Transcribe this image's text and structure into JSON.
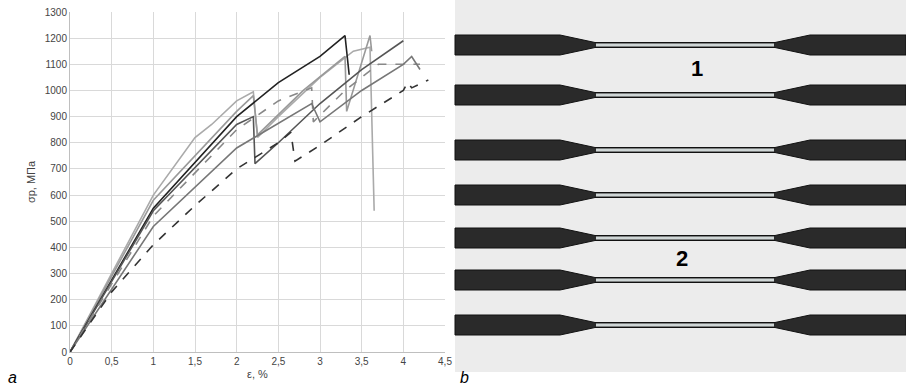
{
  "chart_data": {
    "type": "line",
    "x_label": "ε, %",
    "y_label": "σp, МПа",
    "xlim": [
      0,
      4.5
    ],
    "ylim": [
      0,
      1300
    ],
    "xticks": [
      0,
      {
        "value": 0.5,
        "label": "0,5"
      },
      1,
      {
        "value": 1.5,
        "label": "1,5"
      },
      2,
      {
        "value": 2.5,
        "label": "2,5"
      },
      3,
      {
        "value": 3.5,
        "label": "3,5"
      },
      4,
      {
        "value": 4.5,
        "label": "4,5"
      }
    ],
    "yticks": [
      0,
      100,
      200,
      300,
      400,
      500,
      600,
      700,
      800,
      900,
      1000,
      1100,
      1200,
      1300
    ],
    "grid": true,
    "series": [
      {
        "color": "#aaaaaa",
        "line_style": "solid",
        "x": [
          0,
          1,
          1.5,
          1.7,
          2.0,
          2.2,
          2.25,
          2.5,
          3.0,
          3.4,
          3.6,
          3.65
        ],
        "values": [
          0,
          600,
          820,
          870,
          960,
          995,
          820,
          900,
          1050,
          1150,
          1165,
          540
        ]
      },
      {
        "color": "#999999",
        "line_style": "solid",
        "x": [
          0,
          1,
          2.0,
          2.2,
          2.25,
          2.8,
          3.3,
          3.32,
          3.6,
          3.62
        ],
        "values": [
          0,
          580,
          920,
          980,
          830,
          1000,
          1130,
          920,
          1210,
          1150
        ]
      },
      {
        "color": "#222222",
        "line_style": "solid",
        "x": [
          0,
          1,
          2.0,
          2.5,
          3.0,
          3.3,
          3.35
        ],
        "values": [
          0,
          550,
          900,
          1030,
          1130,
          1210,
          1060
        ]
      },
      {
        "color": "#555555",
        "line_style": "solid",
        "x": [
          0,
          1,
          2.0,
          2.2,
          2.22,
          2.5,
          3.0,
          3.5,
          4.0
        ],
        "values": [
          0,
          540,
          870,
          900,
          720,
          800,
          950,
          1080,
          1190
        ]
      },
      {
        "color": "#888888",
        "line_style": "dash",
        "x": [
          0,
          1,
          2.0,
          2.5,
          2.9,
          2.92,
          3.3,
          3.7,
          4.2
        ],
        "values": [
          0,
          520,
          850,
          960,
          1010,
          880,
          1000,
          1100,
          1100
        ]
      },
      {
        "color": "#777777",
        "line_style": "solid",
        "x": [
          0,
          1,
          2.0,
          2.9,
          3.0,
          3.5,
          4.0,
          4.1,
          4.2
        ],
        "values": [
          0,
          480,
          780,
          950,
          880,
          1000,
          1100,
          1130,
          1080
        ]
      },
      {
        "color": "#333333",
        "line_style": "dash",
        "x": [
          0,
          0.5,
          1,
          1.5,
          2.0,
          2.5,
          2.65,
          2.7,
          3.0,
          3.5,
          4.0,
          4.05,
          4.1,
          4.3
        ],
        "values": [
          0,
          230,
          410,
          560,
          700,
          800,
          840,
          730,
          790,
          900,
          1000,
          1030,
          1010,
          1040
        ]
      }
    ]
  },
  "panel_labels": [
    "a",
    "b"
  ],
  "photo": {
    "labels": [
      "1",
      "2"
    ]
  }
}
